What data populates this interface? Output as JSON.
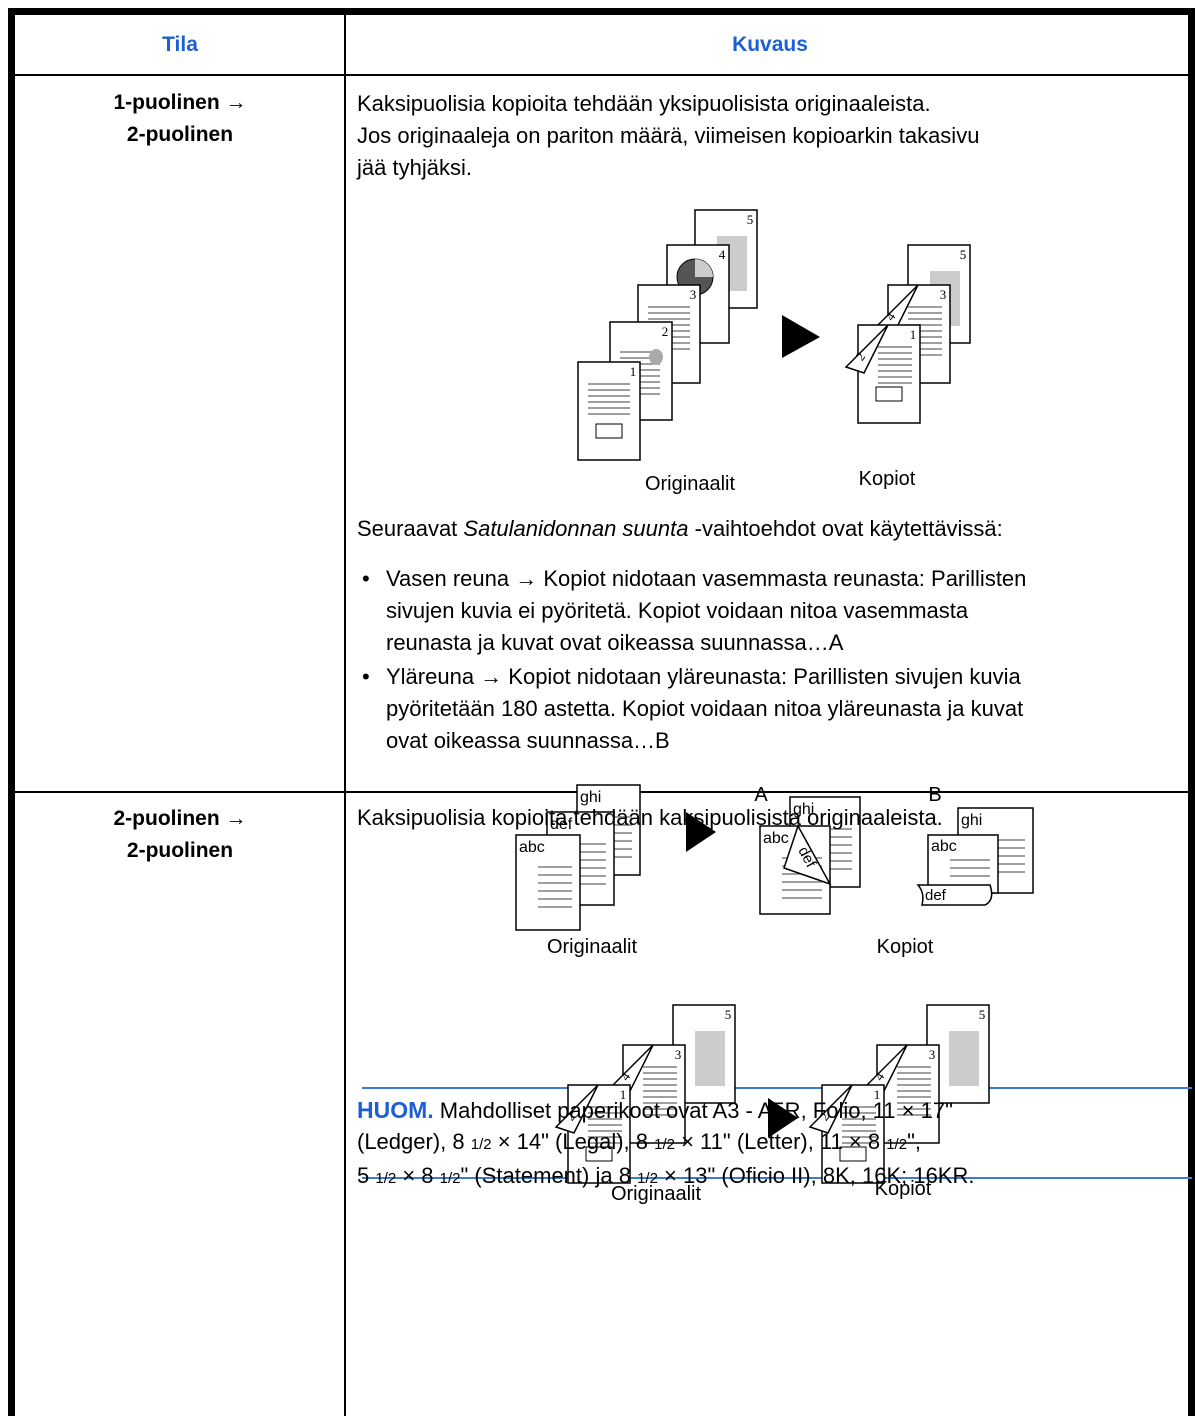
{
  "table": {
    "header": [
      "Tila",
      "Kuvaus"
    ],
    "rows": [
      {
        "mode": [
          "1-puolinen →",
          "2-puolinen"
        ],
        "description": [
          "Kaksipuolisia kopioita tehdään yksipuolisista originaaleista.",
          "Jos originaaleja on pariton määrä, viimeisen kopioarkin takasivu",
          "jää tyhjäksi."
        ],
        "figure1": {
          "originals": [
            "1",
            "2",
            "3",
            "4",
            "5"
          ],
          "copies": [
            "1",
            "2",
            "3",
            "4",
            "5"
          ],
          "labels": [
            "Originaalit",
            "Kopiot"
          ]
        },
        "options_intro": {
          "before": "Seuraavat ",
          "emphasis": "Satulanidonnan suunta",
          "after": " -vaihtoehdot ovat käytettävissä:"
        },
        "options": [
          [
            "Vasen reuna → Kopiot nidotaan vasemmasta reunasta: Parillisten",
            "sivujen kuvia ei pyöritetä. Kopiot voidaan nitoa vasemmasta",
            "reunasta ja kuvat ovat oikeassa suunnassa…A"
          ],
          [
            "Yläreuna → Kopiot nidotaan yläreunasta: Parillisten sivujen kuvia",
            "pyöritetään 180 astetta. Kopiot voidaan nitoa yläreunasta ja kuvat",
            "ovat oikeassa suunnassa…B"
          ]
        ],
        "figure2": {
          "originals": [
            "abc",
            "def",
            "ghi"
          ],
          "copy_a": {
            "letter": "A",
            "pages": [
              "abc",
              "def",
              "ghi"
            ]
          },
          "copy_b": {
            "letter": "B",
            "pages": [
              "abc",
              "def",
              "ghi"
            ]
          },
          "labels": [
            "Originaalit",
            "Kopiot"
          ]
        }
      },
      {
        "mode": [
          "2-puolinen →",
          "2-puolinen"
        ],
        "description": [
          "Kaksipuolisia kopioita tehdään kaksipuolisista originaaleista."
        ],
        "figure": {
          "originals": [
            "1",
            "2",
            "3",
            "4",
            "5"
          ],
          "copies": [
            "1",
            "2",
            "3",
            "4",
            "5"
          ],
          "labels": [
            "Originaalit",
            "Kopiot"
          ]
        },
        "note": {
          "label": "HUOM.",
          "lines": [
            "Mahdolliset paperikoot ovat A3 - A5R, Folio, 11 × 17\"",
            "(Ledger), 8 1/2 × 14\" (Legal), 8 1/2 × 11\" (Letter), 11 × 8 1/2\",",
            "5 1/2 × 8 1/2\" (Statement) ja 8 1/2 × 13\" (Oficio II), 8K, 16K; 16KR."
          ]
        }
      }
    ]
  }
}
